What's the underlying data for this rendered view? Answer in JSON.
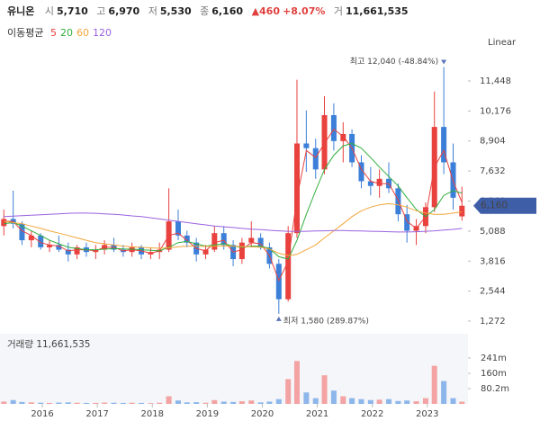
{
  "header": {
    "name": "유니온",
    "items": [
      {
        "label": "시",
        "value": "5,710"
      },
      {
        "label": "고",
        "value": "6,970"
      },
      {
        "label": "저",
        "value": "5,530"
      },
      {
        "label": "종",
        "value": "6,160"
      }
    ],
    "change": "▲460",
    "change_pct": "+8.07%",
    "volume_label": "거",
    "volume": "11,661,535"
  },
  "chart_data": {
    "type": "candlestick",
    "x": [
      2015.3,
      2015.47,
      2015.63,
      2015.8,
      2015.97,
      2016.13,
      2016.3,
      2016.47,
      2016.63,
      2016.8,
      2016.97,
      2017.13,
      2017.3,
      2017.47,
      2017.63,
      2017.8,
      2017.97,
      2018.13,
      2018.3,
      2018.47,
      2018.63,
      2018.8,
      2018.97,
      2019.13,
      2019.3,
      2019.47,
      2019.63,
      2019.8,
      2019.97,
      2020.13,
      2020.3,
      2020.47,
      2020.63,
      2020.8,
      2020.97,
      2021.13,
      2021.3,
      2021.47,
      2021.63,
      2021.8,
      2021.97,
      2022.13,
      2022.3,
      2022.47,
      2022.63,
      2022.8,
      2022.97,
      2023.13,
      2023.3,
      2023.47,
      2023.63
    ],
    "open": [
      5300,
      5600,
      5400,
      4700,
      4900,
      4400,
      4500,
      4300,
      4100,
      4400,
      4200,
      4300,
      4500,
      4300,
      4200,
      4400,
      4100,
      4200,
      4300,
      5500,
      4900,
      4600,
      4100,
      4300,
      5000,
      4500,
      3900,
      4600,
      4800,
      4400,
      3700,
      2200,
      5000,
      8800,
      8600,
      7700,
      10000,
      8900,
      9200,
      8000,
      7200,
      7000,
      7300,
      6900,
      5800,
      5100,
      5300,
      6100,
      9500,
      8000,
      5710
    ],
    "high": [
      6000,
      6800,
      5500,
      5100,
      5000,
      4700,
      4900,
      4600,
      4500,
      4600,
      4500,
      4700,
      4800,
      4500,
      4600,
      4500,
      4400,
      4600,
      6900,
      6000,
      5100,
      4800,
      4500,
      5300,
      5300,
      4700,
      4800,
      5500,
      5000,
      4600,
      3900,
      5300,
      11500,
      10200,
      9000,
      10800,
      10500,
      9700,
      9400,
      8300,
      7800,
      7700,
      8000,
      7100,
      6200,
      5600,
      6300,
      11000,
      12040,
      8800,
      6970
    ],
    "low": [
      4900,
      5200,
      4500,
      4400,
      4300,
      4200,
      4200,
      3800,
      3900,
      4000,
      3900,
      4100,
      4200,
      4000,
      4000,
      3900,
      3900,
      3900,
      4200,
      4700,
      4400,
      3800,
      3900,
      4200,
      4300,
      3600,
      3700,
      4400,
      4300,
      3500,
      1580,
      2100,
      4800,
      7600,
      7300,
      7500,
      8500,
      8000,
      7800,
      6900,
      6600,
      6500,
      6700,
      5500,
      4600,
      4500,
      5000,
      5900,
      7500,
      6000,
      5530
    ],
    "close": [
      5600,
      5400,
      4700,
      4900,
      4400,
      4500,
      4300,
      4100,
      4400,
      4200,
      4300,
      4500,
      4300,
      4200,
      4400,
      4100,
      4200,
      4300,
      5500,
      4900,
      4600,
      4100,
      4300,
      5000,
      4500,
      3900,
      4600,
      4800,
      4400,
      3700,
      2200,
      5000,
      8800,
      8600,
      7700,
      10000,
      8900,
      9200,
      8000,
      7200,
      7000,
      7300,
      6900,
      5800,
      5100,
      5300,
      6100,
      9500,
      8000,
      6500,
      6160
    ],
    "volume": [
      12,
      20,
      10,
      8,
      6,
      5,
      7,
      8,
      6,
      5,
      5,
      7,
      6,
      5,
      6,
      5,
      4,
      6,
      40,
      18,
      8,
      9,
      6,
      20,
      12,
      10,
      14,
      18,
      8,
      12,
      25,
      130,
      225,
      60,
      30,
      150,
      70,
      40,
      30,
      25,
      20,
      22,
      25,
      15,
      18,
      14,
      30,
      200,
      120,
      30,
      11.661535
    ],
    "up_color": "#e8413e",
    "down_color": "#3c7fd8",
    "up_volume_color": "#f3a3a3",
    "down_volume_color": "#8db6ea",
    "ma": {
      "title": "이동평균",
      "series": [
        {
          "name": "5",
          "color": "#e8413e",
          "values": [
            5500,
            5500,
            5100,
            4900,
            4600,
            4500,
            4450,
            4250,
            4300,
            4300,
            4250,
            4400,
            4400,
            4250,
            4300,
            4250,
            4150,
            4250,
            4900,
            5000,
            4700,
            4350,
            4250,
            4600,
            4700,
            4200,
            4300,
            4600,
            4550,
            4050,
            3000,
            3800,
            6500,
            8500,
            8200,
            8800,
            9400,
            9100,
            8600,
            7700,
            7200,
            7100,
            7100,
            6400,
            5500,
            5200,
            5700,
            7800,
            8500,
            7200,
            6300
          ]
        },
        {
          "name": "20",
          "color": "#2fae3c",
          "values": [
            5400,
            5450,
            5300,
            5100,
            4900,
            4700,
            4550,
            4400,
            4350,
            4300,
            4300,
            4320,
            4350,
            4330,
            4320,
            4300,
            4270,
            4250,
            4400,
            4600,
            4650,
            4550,
            4450,
            4500,
            4550,
            4450,
            4400,
            4450,
            4450,
            4350,
            4000,
            3900,
            4700,
            5800,
            6800,
            7700,
            8300,
            8700,
            8800,
            8600,
            8200,
            7800,
            7400,
            7000,
            6500,
            6000,
            5700,
            6000,
            6600,
            6800,
            6700
          ]
        },
        {
          "name": "60",
          "color": "#f2a53a",
          "values": [
            5500,
            5450,
            5400,
            5300,
            5200,
            5100,
            5000,
            4900,
            4800,
            4700,
            4600,
            4550,
            4500,
            4450,
            4420,
            4400,
            4380,
            4360,
            4380,
            4420,
            4450,
            4450,
            4440,
            4450,
            4460,
            4450,
            4430,
            4420,
            4400,
            4330,
            4150,
            4050,
            4100,
            4300,
            4500,
            4800,
            5100,
            5400,
            5700,
            5950,
            6100,
            6200,
            6250,
            6200,
            6100,
            5950,
            5850,
            5800,
            5800,
            5850,
            5900
          ]
        },
        {
          "name": "120",
          "color": "#9a62e0",
          "values": [
            5700,
            5720,
            5740,
            5760,
            5780,
            5800,
            5820,
            5840,
            5850,
            5850,
            5840,
            5820,
            5800,
            5770,
            5730,
            5700,
            5650,
            5600,
            5550,
            5500,
            5450,
            5400,
            5350,
            5300,
            5270,
            5240,
            5200,
            5170,
            5150,
            5120,
            5100,
            5080,
            5070,
            5080,
            5090,
            5100,
            5110,
            5110,
            5100,
            5090,
            5080,
            5070,
            5060,
            5050,
            5050,
            5060,
            5080,
            5100,
            5130,
            5160,
            5200
          ]
        }
      ]
    },
    "scale_label": "Linear",
    "xlim": [
      2015.23,
      2023.74
    ],
    "xticks": [
      {
        "value": 2016,
        "label": "2016"
      },
      {
        "value": 2017,
        "label": "2017"
      },
      {
        "value": 2018,
        "label": "2018"
      },
      {
        "value": 2019,
        "label": "2019"
      },
      {
        "value": 2020,
        "label": "2020"
      },
      {
        "value": 2021,
        "label": "2021"
      },
      {
        "value": 2022,
        "label": "2022"
      },
      {
        "value": 2023,
        "label": "2023"
      }
    ],
    "ylim": [
      853,
      12591
    ],
    "yticks": [
      {
        "value": 1272,
        "label": "1,272"
      },
      {
        "value": 2544,
        "label": "2,544"
      },
      {
        "value": 3816,
        "label": "3,816"
      },
      {
        "value": 5088,
        "label": "5,088"
      },
      {
        "value": 6360,
        "label": "6,360"
      },
      {
        "value": 7632,
        "label": "7,632"
      },
      {
        "value": 8904,
        "label": "8,904"
      },
      {
        "value": 10176,
        "label": "10,176"
      },
      {
        "value": 11448,
        "label": "11,448"
      }
    ],
    "last_price": {
      "value": 6160,
      "label": "6,160"
    },
    "annotations": [
      {
        "text": "최고 12,040 (-48.84%)",
        "value": 12040,
        "x": 2023.3
      },
      {
        "text": "최저 1,580 (289.87%)",
        "value": 1580,
        "x": 2020.3
      }
    ],
    "volume_panel": {
      "title": "거래량 11,661,535",
      "ylim": [
        0,
        368
      ],
      "yticks": [
        {
          "value": 80.2,
          "label": "80.2m"
        },
        {
          "value": 160,
          "label": "160m"
        },
        {
          "value": 241,
          "label": "241m"
        }
      ]
    }
  }
}
